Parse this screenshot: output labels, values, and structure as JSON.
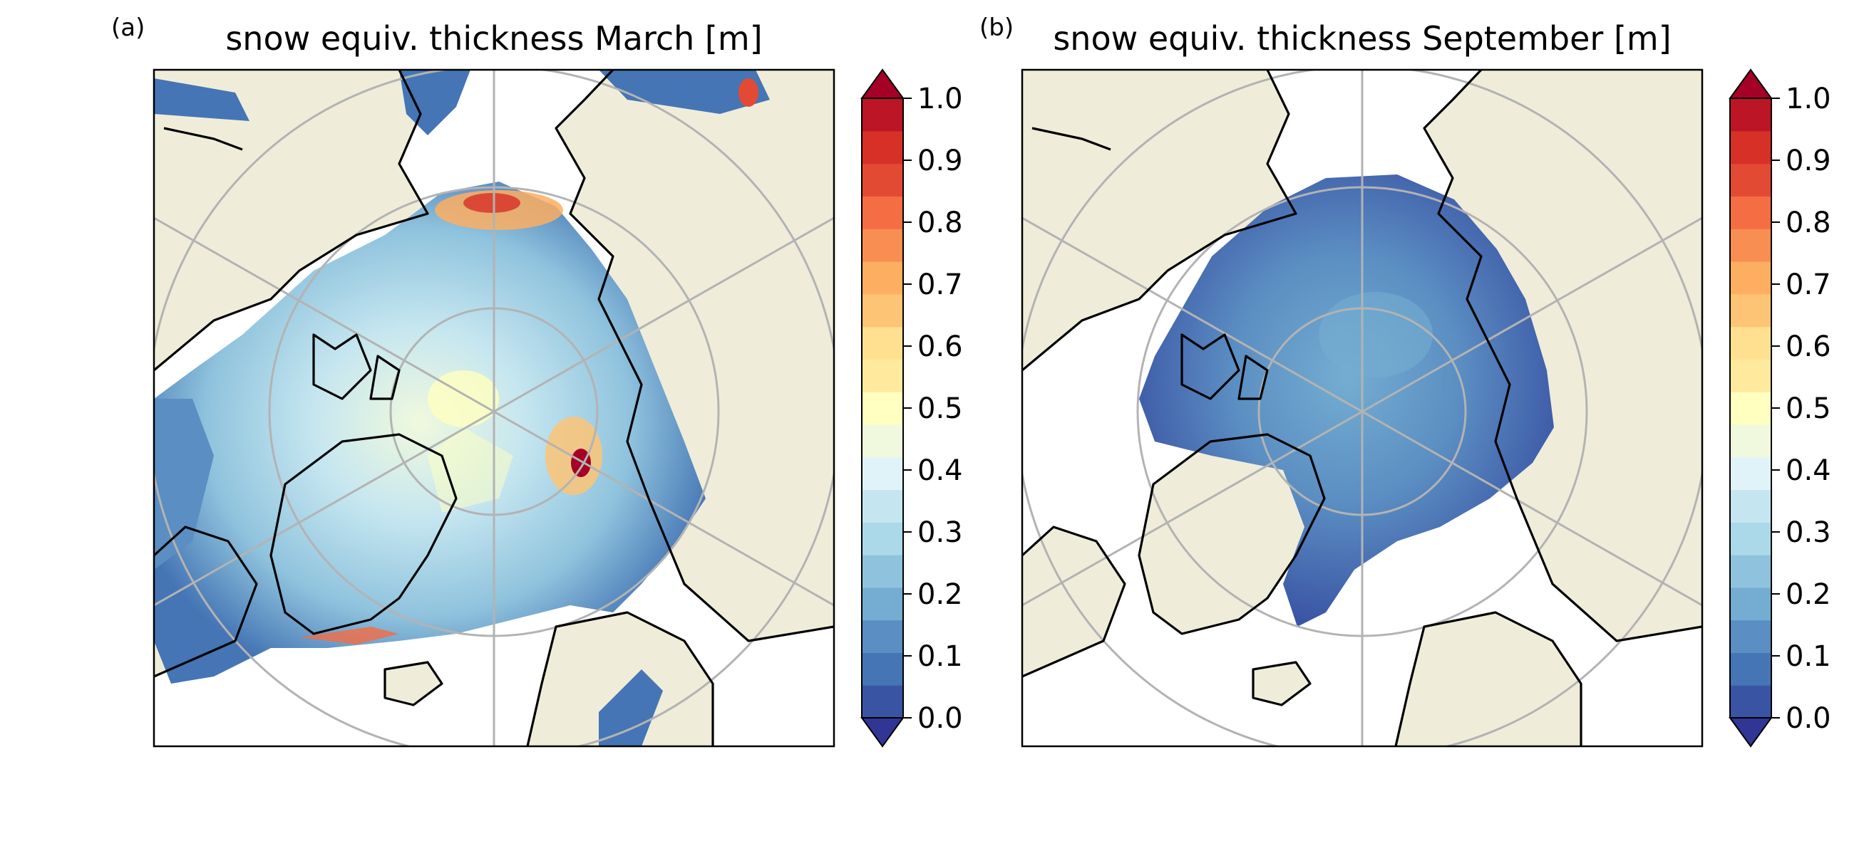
{
  "figure": {
    "panels": [
      {
        "id": "a",
        "letter": "(a)",
        "title": "snow equiv. thickness March [m]",
        "month": "March"
      },
      {
        "id": "b",
        "letter": "(b)",
        "title": "snow equiv. thickness September [m]",
        "month": "September"
      }
    ],
    "colorbar": {
      "min": 0.0,
      "max": 1.0,
      "step": 0.05,
      "ticks": [
        "0.0",
        "0.1",
        "0.2",
        "0.3",
        "0.4",
        "0.5",
        "0.6",
        "0.7",
        "0.8",
        "0.9",
        "1.0"
      ],
      "extend": "both",
      "colormap": "RdYlBu_r",
      "colors": [
        "#313695",
        "#3a54a4",
        "#4575b4",
        "#5b8ec2",
        "#74add1",
        "#8fc3dd",
        "#abd9e9",
        "#c5e6f0",
        "#e0f3f8",
        "#f0f9dd",
        "#ffffbf",
        "#fee99d",
        "#fee090",
        "#fdc475",
        "#fdae61",
        "#f88e52",
        "#f46d43",
        "#e34a33",
        "#d73027",
        "#bb1526",
        "#a50026"
      ]
    },
    "land_color": "#efedda",
    "ocean_color": "#ffffff",
    "projection": "north-polar-stereographic"
  }
}
